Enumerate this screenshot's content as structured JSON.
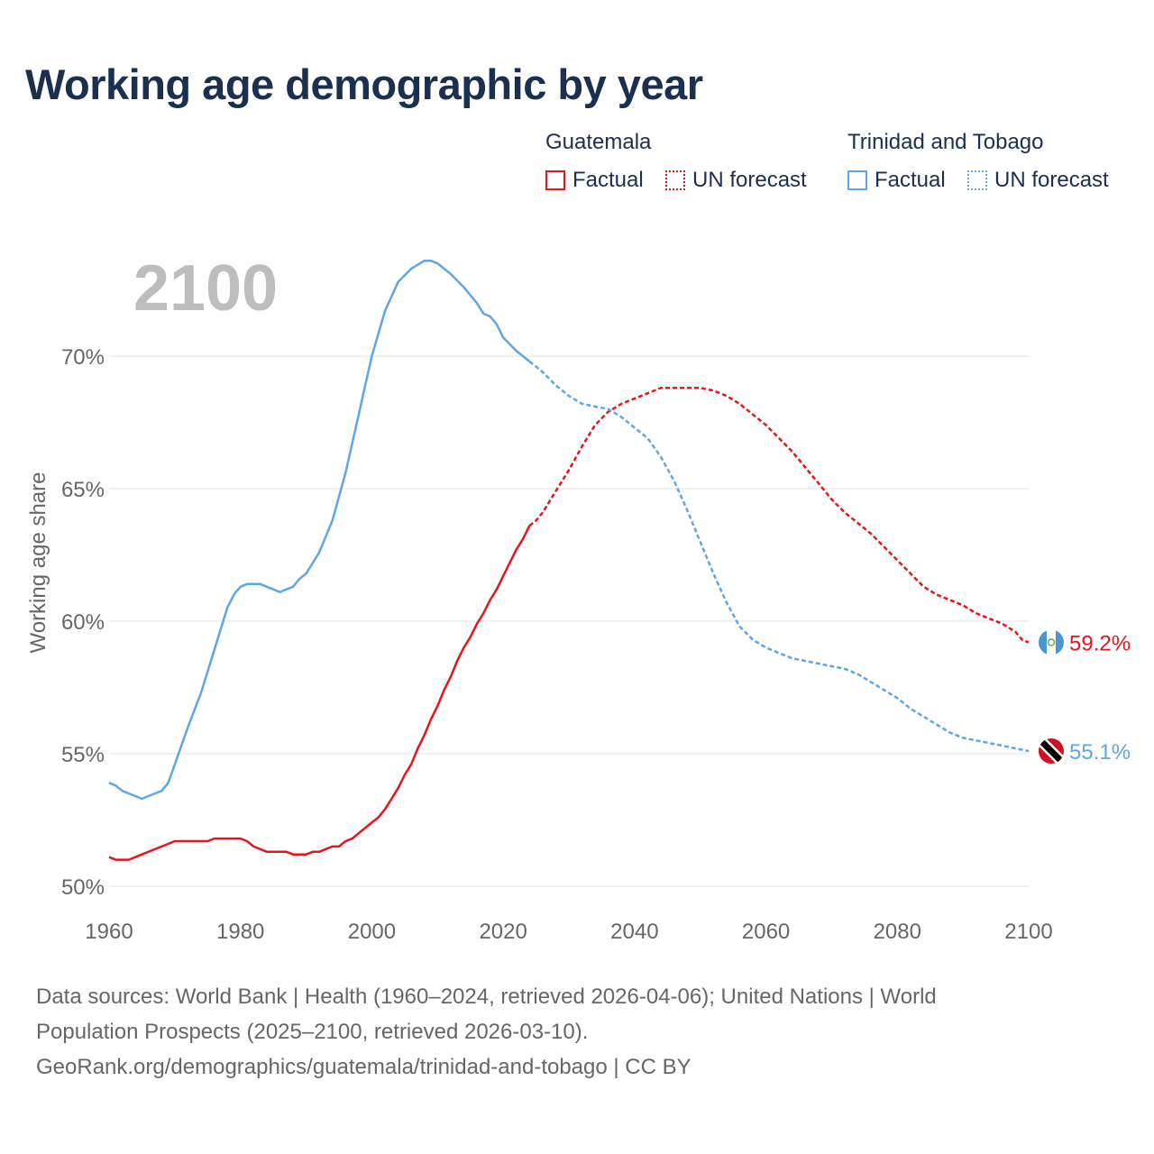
{
  "title": "Working age demographic by year",
  "legend": {
    "groups": [
      {
        "name": "Guatemala",
        "color": "#e8141c",
        "factual_label": "Factual",
        "forecast_label": "UN forecast"
      },
      {
        "name": "Trinidad and Tobago",
        "color": "#5ea6e4",
        "factual_label": "Factual",
        "forecast_label": "UN forecast"
      }
    ]
  },
  "footer": {
    "line1": "Data sources: World Bank | Health (1960–2024, retrieved 2026-04-06); United Nations | World",
    "line2": "Population Prospects (2025–2100, retrieved 2026-03-10).",
    "line3": "GeoRank.org/demographics/guatemala/trinidad-and-tobago | CC BY"
  },
  "chart_data": {
    "type": "line",
    "title": "Working age demographic by year",
    "year_label": "2100",
    "ylabel": "Working age share",
    "xlabel": "",
    "xlim": [
      1960,
      2100
    ],
    "ylim": [
      50,
      75
    ],
    "x_ticks": [
      1960,
      1980,
      2000,
      2020,
      2040,
      2060,
      2080,
      2100
    ],
    "x_tick_labels": [
      "1960",
      "1980",
      "2000",
      "2020",
      "2040",
      "2060",
      "2080",
      "2100"
    ],
    "y_ticks": [
      50,
      55,
      60,
      65,
      70
    ],
    "y_tick_labels": [
      "50%",
      "55%",
      "60%",
      "65%",
      "70%"
    ],
    "grid": true,
    "series": [
      {
        "name": "Guatemala",
        "color": "#e8141c",
        "end_label": "59.2%",
        "factual": {
          "x": [
            1960,
            1961,
            1962,
            1963,
            1965,
            1968,
            1970,
            1973,
            1975,
            1976,
            1978,
            1980,
            1981,
            1982,
            1984,
            1986,
            1987,
            1988,
            1990,
            1991,
            1992,
            1993,
            1994,
            1995,
            1996,
            1997,
            1998,
            2000,
            2001,
            2002,
            2003,
            2004,
            2005,
            2006,
            2007,
            2008,
            2009,
            2010,
            2011,
            2012,
            2013,
            2014,
            2015,
            2016,
            2017,
            2018,
            2019,
            2020,
            2021,
            2022,
            2023,
            2024
          ],
          "y": [
            51.1,
            51.0,
            51.0,
            51.0,
            51.2,
            51.5,
            51.7,
            51.7,
            51.7,
            51.8,
            51.8,
            51.8,
            51.7,
            51.5,
            51.3,
            51.3,
            51.3,
            51.2,
            51.2,
            51.3,
            51.3,
            51.4,
            51.5,
            51.5,
            51.7,
            51.8,
            52.0,
            52.4,
            52.6,
            52.9,
            53.3,
            53.7,
            54.2,
            54.6,
            55.2,
            55.7,
            56.3,
            56.8,
            57.4,
            57.9,
            58.5,
            59.0,
            59.4,
            59.9,
            60.3,
            60.8,
            61.2,
            61.7,
            62.2,
            62.7,
            63.1,
            63.6
          ]
        },
        "forecast": {
          "x": [
            2024,
            2025,
            2026,
            2028,
            2030,
            2032,
            2034,
            2036,
            2038,
            2040,
            2042,
            2044,
            2046,
            2048,
            2050,
            2052,
            2054,
            2056,
            2058,
            2060,
            2062,
            2064,
            2066,
            2068,
            2070,
            2072,
            2074,
            2076,
            2078,
            2080,
            2082,
            2084,
            2086,
            2088,
            2090,
            2092,
            2094,
            2096,
            2098,
            2099,
            2100
          ],
          "y": [
            63.6,
            63.8,
            64.1,
            64.9,
            65.7,
            66.6,
            67.4,
            67.9,
            68.2,
            68.4,
            68.6,
            68.8,
            68.8,
            68.8,
            68.8,
            68.7,
            68.5,
            68.2,
            67.8,
            67.4,
            66.9,
            66.4,
            65.8,
            65.2,
            64.6,
            64.1,
            63.7,
            63.3,
            62.8,
            62.3,
            61.8,
            61.3,
            61.0,
            60.8,
            60.6,
            60.3,
            60.1,
            59.9,
            59.6,
            59.3,
            59.2
          ]
        }
      },
      {
        "name": "Trinidad and Tobago",
        "color": "#5ea6e4",
        "end_label": "55.1%",
        "factual": {
          "x": [
            1960,
            1961,
            1962,
            1963,
            1965,
            1966,
            1968,
            1969,
            1970,
            1972,
            1974,
            1976,
            1978,
            1979,
            1980,
            1981,
            1982,
            1983,
            1984,
            1986,
            1988,
            1989,
            1990,
            1991,
            1992,
            1994,
            1996,
            1998,
            2000,
            2002,
            2004,
            2006,
            2008,
            2009,
            2010,
            2012,
            2014,
            2016,
            2017,
            2018,
            2019,
            2020,
            2022,
            2024
          ],
          "y": [
            53.9,
            53.8,
            53.6,
            53.5,
            53.3,
            53.4,
            53.6,
            53.9,
            54.6,
            56.0,
            57.3,
            58.9,
            60.5,
            61.0,
            61.3,
            61.4,
            61.4,
            61.4,
            61.3,
            61.1,
            61.3,
            61.6,
            61.8,
            62.2,
            62.6,
            63.8,
            65.6,
            67.8,
            70.0,
            71.7,
            72.8,
            73.3,
            73.6,
            73.6,
            73.5,
            73.1,
            72.6,
            72.0,
            71.6,
            71.5,
            71.2,
            70.7,
            70.2,
            69.8
          ]
        },
        "forecast": {
          "x": [
            2024,
            2026,
            2028,
            2030,
            2032,
            2034,
            2036,
            2038,
            2040,
            2042,
            2044,
            2046,
            2048,
            2050,
            2052,
            2054,
            2056,
            2058,
            2060,
            2062,
            2064,
            2066,
            2068,
            2070,
            2072,
            2074,
            2076,
            2078,
            2080,
            2082,
            2084,
            2086,
            2088,
            2090,
            2092,
            2094,
            2096,
            2098,
            2100
          ],
          "y": [
            69.8,
            69.4,
            68.9,
            68.5,
            68.2,
            68.1,
            68.0,
            67.7,
            67.3,
            66.9,
            66.2,
            65.3,
            64.2,
            63.0,
            61.8,
            60.7,
            59.8,
            59.3,
            59.0,
            58.8,
            58.6,
            58.5,
            58.4,
            58.3,
            58.2,
            58.0,
            57.7,
            57.4,
            57.1,
            56.7,
            56.4,
            56.1,
            55.8,
            55.6,
            55.5,
            55.4,
            55.3,
            55.2,
            55.1
          ]
        }
      }
    ]
  }
}
